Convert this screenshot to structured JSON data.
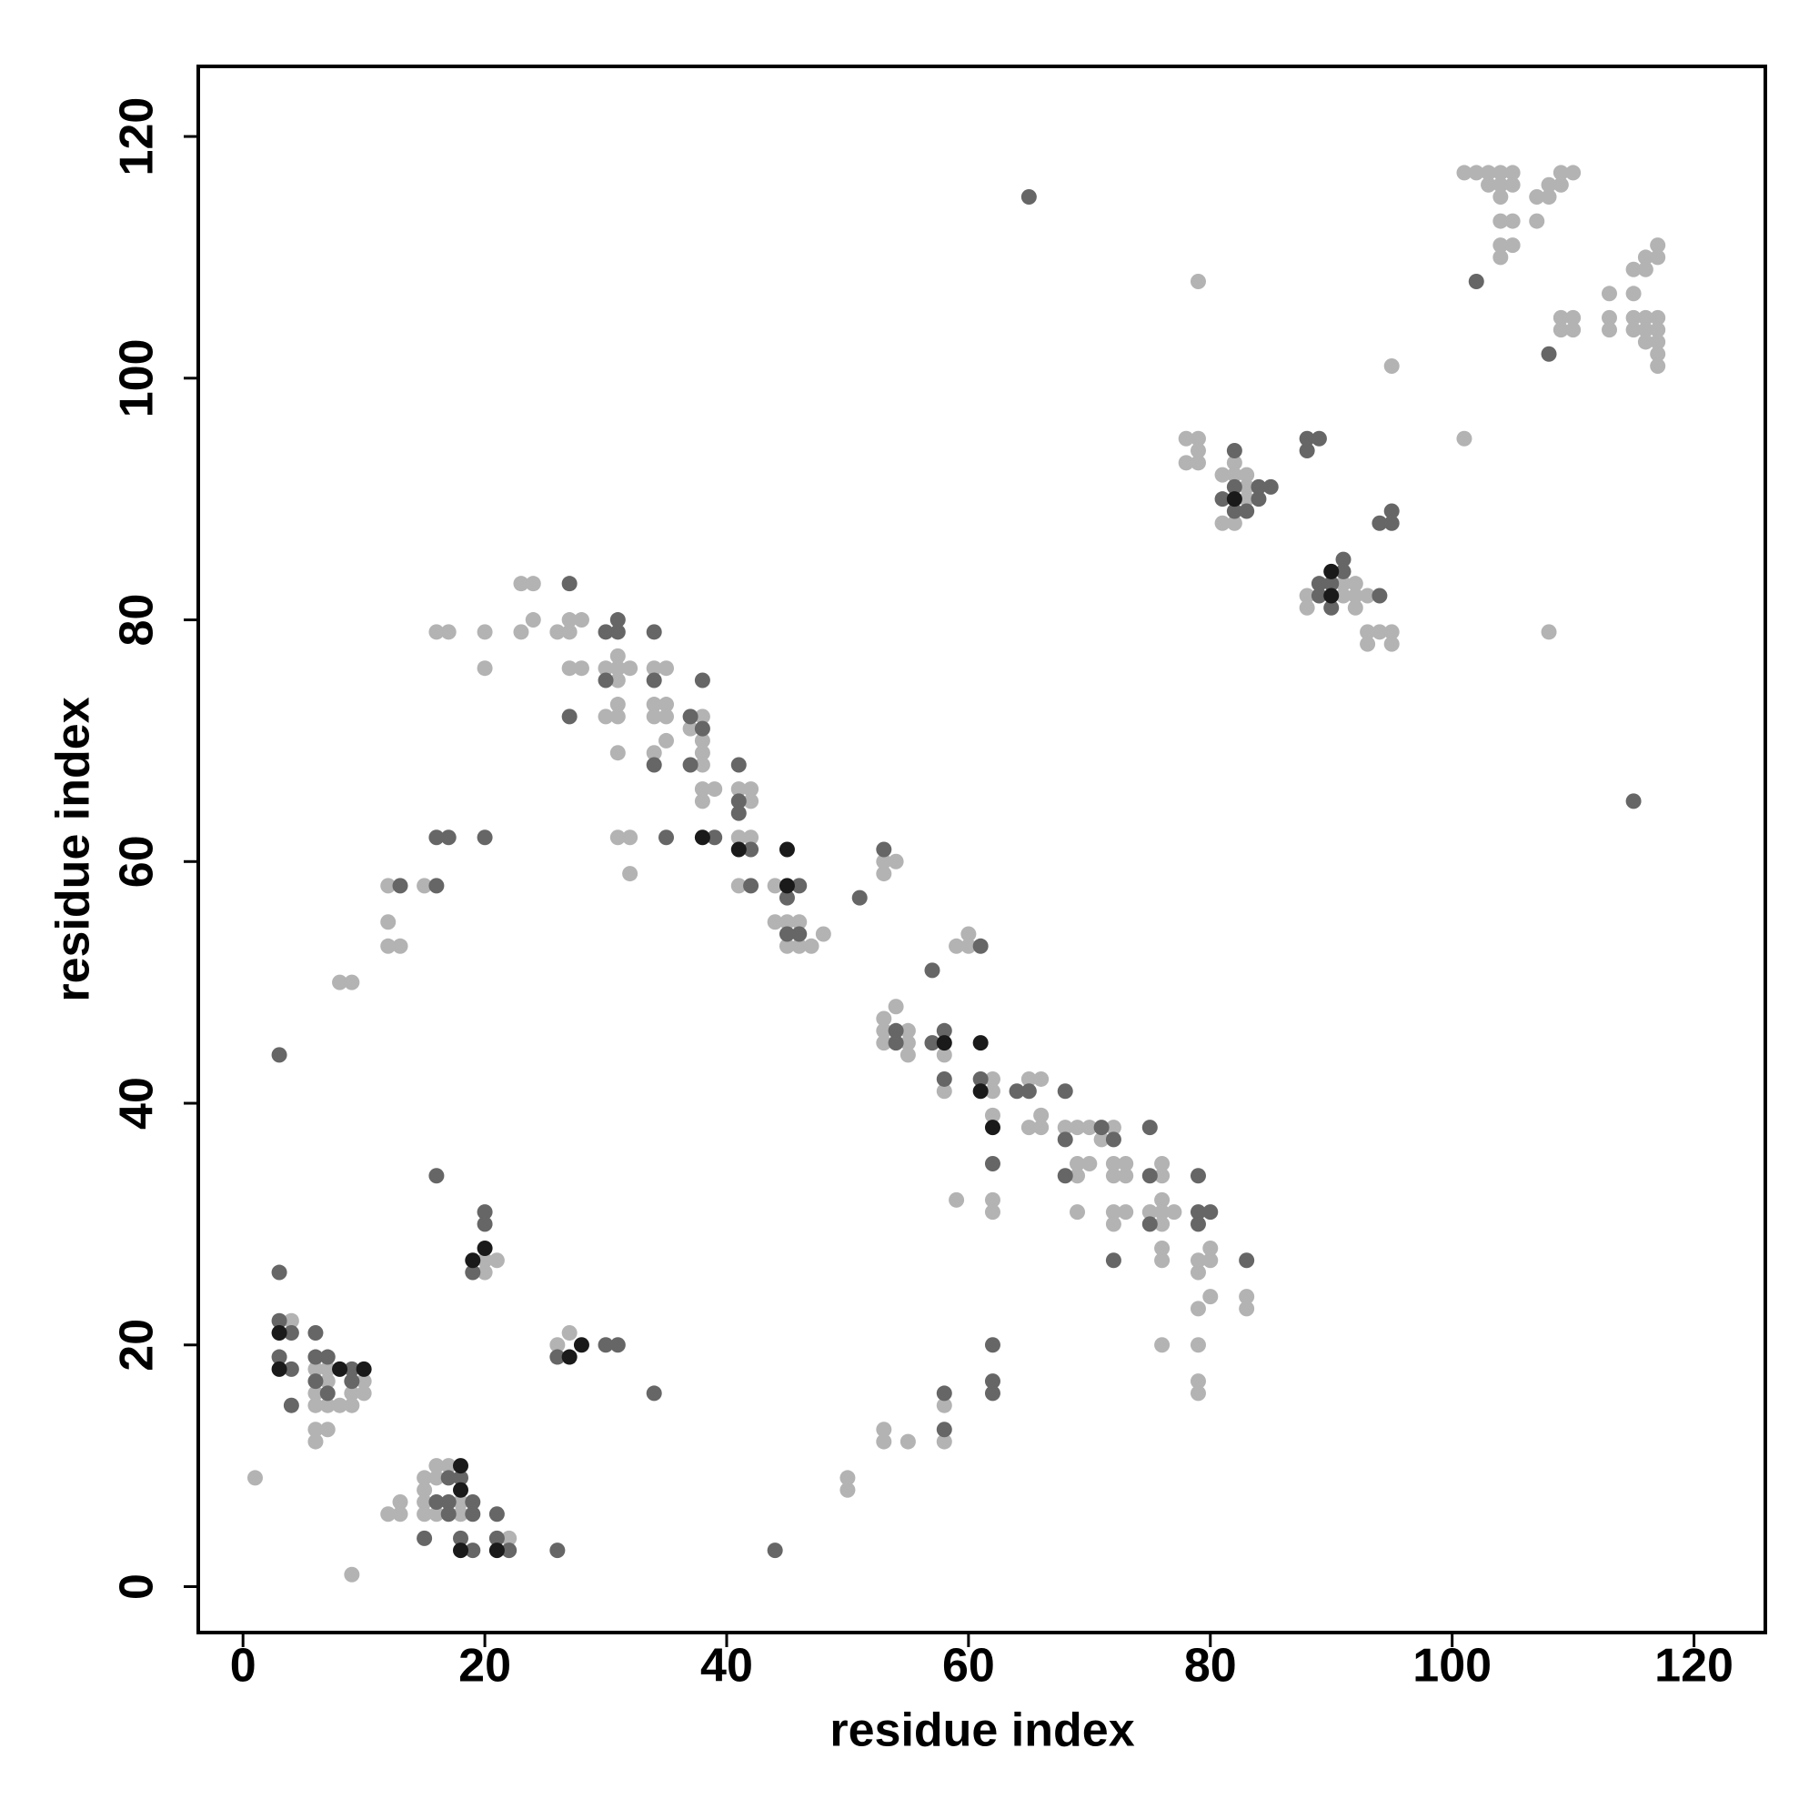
{
  "chart_data": {
    "type": "scatter",
    "x_label": "residue index",
    "y_label": "residue index",
    "xlim": [
      -3.7,
      125.9
    ],
    "ylim": [
      -3.8,
      125.8
    ],
    "xticks": [
      0,
      20,
      40,
      60,
      80,
      100,
      120
    ],
    "yticks": [
      0,
      20,
      40,
      60,
      80,
      100,
      120
    ],
    "series": [
      {
        "color": "#b3b3b3",
        "x": [
          4,
          6,
          6,
          6,
          6,
          6,
          7,
          7,
          7,
          7,
          8,
          9,
          9,
          10,
          10,
          1,
          9,
          15,
          15,
          15,
          15,
          16,
          16,
          16,
          17,
          18,
          18,
          22,
          13,
          12,
          13,
          20,
          20,
          21,
          26,
          27,
          8,
          9,
          12,
          12,
          12,
          13,
          15,
          16,
          17,
          20,
          20,
          23,
          24,
          23,
          24,
          26,
          27,
          27,
          28,
          27,
          28,
          30,
          31,
          31,
          32,
          31,
          30,
          31,
          31,
          31,
          31,
          32,
          32,
          34,
          35,
          34,
          35,
          34,
          35,
          34,
          35,
          38,
          37,
          38,
          38,
          38,
          38,
          39,
          38,
          41,
          42,
          42,
          41,
          42,
          41,
          44,
          44,
          45,
          46,
          47,
          45,
          46,
          48,
          53,
          54,
          53,
          59,
          60,
          60,
          54,
          53,
          53,
          53,
          55,
          55,
          55,
          58,
          58,
          62,
          62,
          65,
          66,
          62,
          65,
          66,
          66,
          68,
          69,
          70,
          71,
          72,
          69,
          70,
          69,
          72,
          73,
          72,
          73,
          76,
          76,
          62,
          62,
          59,
          69,
          72,
          73,
          72,
          75,
          76,
          76,
          76,
          77,
          76,
          76,
          79,
          80,
          80,
          79,
          80,
          79,
          83,
          83,
          76,
          79,
          79,
          79,
          58,
          58,
          53,
          53,
          55,
          50,
          50,
          79,
          78,
          79,
          79,
          78,
          79,
          81,
          82,
          82,
          83,
          83,
          83,
          81,
          82,
          88,
          88,
          91,
          92,
          91,
          92,
          93,
          92,
          93,
          94,
          95,
          93,
          95,
          95,
          101,
          108,
          101,
          102,
          103,
          104,
          105,
          103,
          104,
          105,
          104,
          104,
          105,
          104,
          105,
          104,
          107,
          107,
          108,
          108,
          109,
          109,
          110,
          109,
          109,
          110,
          110,
          113,
          113,
          113,
          115,
          115,
          116,
          116,
          117,
          117,
          115,
          116,
          117,
          115,
          116,
          117,
          116,
          117,
          117,
          117
        ],
        "y": [
          22,
          18,
          16,
          15,
          13,
          12,
          18,
          17,
          15,
          13,
          15,
          16,
          15,
          17,
          16,
          9,
          1,
          9,
          8,
          7,
          6,
          10,
          9,
          6,
          10,
          7,
          6,
          4,
          7,
          6,
          6,
          27,
          26,
          27,
          20,
          21,
          50,
          50,
          58,
          55,
          53,
          53,
          58,
          79,
          79,
          79,
          76,
          83,
          83,
          79,
          80,
          79,
          80,
          79,
          80,
          76,
          76,
          76,
          77,
          76,
          76,
          75,
          72,
          73,
          72,
          69,
          62,
          62,
          59,
          76,
          76,
          73,
          73,
          72,
          72,
          69,
          70,
          72,
          71,
          70,
          69,
          68,
          66,
          66,
          65,
          66,
          66,
          65,
          62,
          62,
          58,
          58,
          55,
          55,
          55,
          53,
          53,
          53,
          54,
          60,
          60,
          59,
          53,
          54,
          53,
          48,
          47,
          46,
          45,
          46,
          45,
          44,
          44,
          41,
          42,
          41,
          42,
          42,
          39,
          38,
          39,
          38,
          38,
          38,
          38,
          37,
          38,
          35,
          35,
          34,
          35,
          35,
          34,
          34,
          35,
          34,
          32,
          31,
          32,
          31,
          31,
          31,
          30,
          31,
          32,
          31,
          30,
          31,
          28,
          27,
          27,
          28,
          27,
          26,
          24,
          23,
          24,
          23,
          20,
          20,
          17,
          16,
          15,
          12,
          13,
          12,
          12,
          9,
          8,
          108,
          95,
          95,
          94,
          93,
          93,
          92,
          93,
          92,
          92,
          91,
          90,
          88,
          88,
          82,
          81,
          83,
          83,
          82,
          82,
          82,
          81,
          79,
          79,
          79,
          78,
          78,
          101,
          95,
          79,
          117,
          117,
          117,
          117,
          117,
          116,
          116,
          116,
          115,
          113,
          113,
          111,
          111,
          110,
          115,
          113,
          116,
          115,
          116,
          117,
          117,
          105,
          104,
          105,
          104,
          107,
          105,
          104,
          107,
          109,
          110,
          109,
          111,
          110,
          105,
          105,
          105,
          104,
          104,
          104,
          103,
          103,
          102,
          101
        ]
      },
      {
        "color": "#666666",
        "x": [
          3,
          3,
          3,
          3,
          4,
          4,
          4,
          6,
          6,
          6,
          7,
          7,
          9,
          9,
          15,
          16,
          17,
          17,
          17,
          18,
          18,
          19,
          19,
          19,
          21,
          21,
          22,
          26,
          44,
          16,
          20,
          20,
          19,
          26,
          30,
          31,
          34,
          13,
          16,
          16,
          17,
          20,
          27,
          27,
          30,
          31,
          31,
          30,
          34,
          34,
          34,
          35,
          37,
          38,
          38,
          37,
          39,
          41,
          41,
          41,
          42,
          42,
          46,
          45,
          45,
          46,
          51,
          53,
          57,
          61,
          54,
          54,
          57,
          58,
          58,
          61,
          64,
          65,
          68,
          68,
          71,
          72,
          75,
          62,
          68,
          75,
          75,
          79,
          79,
          80,
          79,
          72,
          83,
          62,
          62,
          62,
          58,
          58,
          65,
          82,
          82,
          84,
          85,
          81,
          84,
          82,
          83,
          88,
          89,
          88,
          89,
          89,
          91,
          91,
          90,
          94,
          90,
          94,
          95,
          95,
          102,
          108,
          115
        ],
        "y": [
          26,
          44,
          22,
          19,
          21,
          18,
          15,
          21,
          19,
          17,
          19,
          16,
          18,
          17,
          4,
          7,
          9,
          7,
          6,
          9,
          4,
          7,
          6,
          3,
          6,
          4,
          3,
          3,
          3,
          34,
          31,
          30,
          26,
          19,
          20,
          20,
          16,
          58,
          58,
          62,
          62,
          62,
          83,
          72,
          79,
          80,
          79,
          75,
          79,
          75,
          68,
          62,
          72,
          71,
          75,
          68,
          62,
          68,
          65,
          64,
          61,
          58,
          58,
          57,
          54,
          54,
          57,
          61,
          51,
          53,
          46,
          45,
          45,
          46,
          42,
          42,
          41,
          41,
          41,
          37,
          38,
          37,
          38,
          35,
          34,
          34,
          30,
          34,
          31,
          31,
          30,
          27,
          27,
          20,
          17,
          16,
          16,
          13,
          115,
          94,
          91,
          91,
          91,
          90,
          90,
          89,
          89,
          95,
          95,
          94,
          83,
          82,
          85,
          84,
          83,
          82,
          81,
          88,
          89,
          88,
          108,
          102,
          65
        ]
      },
      {
        "color": "#1a1a1a",
        "x": [
          3,
          3,
          8,
          10,
          18,
          18,
          18,
          21,
          20,
          19,
          27,
          28,
          38,
          41,
          45,
          45,
          58,
          61,
          61,
          62,
          82,
          90,
          90
        ],
        "y": [
          21,
          18,
          18,
          18,
          10,
          8,
          3,
          3,
          28,
          27,
          19,
          20,
          62,
          61,
          61,
          58,
          45,
          45,
          41,
          38,
          90,
          84,
          82
        ]
      }
    ]
  }
}
